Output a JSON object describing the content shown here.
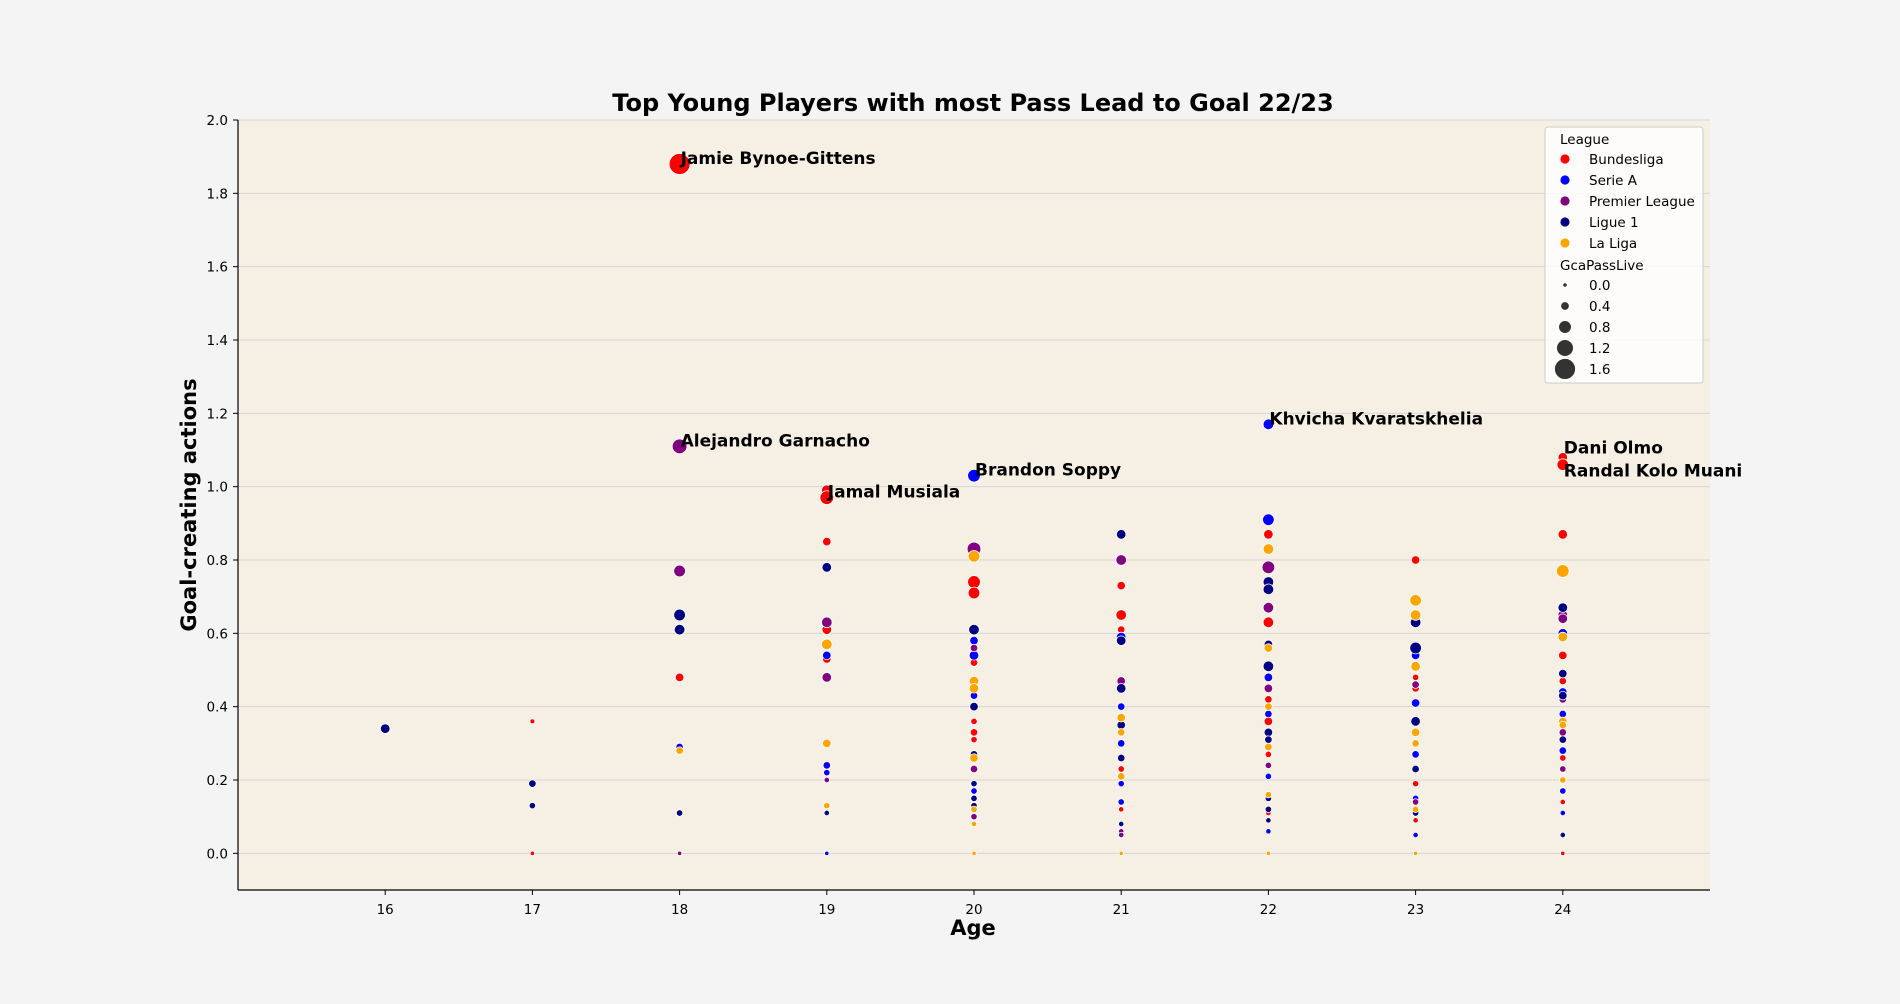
{
  "chart_data": {
    "type": "scatter",
    "title": "Top Young Players with most Pass Lead to Goal 22/23",
    "xlabel": "Age",
    "ylabel": "Goal-creating actions",
    "xlim": [
      15,
      25
    ],
    "ylim": [
      -0.1,
      2.0
    ],
    "xticks": [
      16,
      17,
      18,
      19,
      20,
      21,
      22,
      23,
      24
    ],
    "yticks": [
      "0.0",
      "0.2",
      "0.4",
      "0.6",
      "0.8",
      "1.0",
      "1.2",
      "1.4",
      "1.6",
      "1.8",
      "2.0"
    ],
    "ytick_values": [
      0,
      0.2,
      0.4,
      0.6,
      0.8,
      1.0,
      1.2,
      1.4,
      1.6,
      1.8,
      2.0
    ],
    "grid": "horizontal",
    "legend_position": "top-right",
    "legend": {
      "title": "League",
      "entries": [
        {
          "label": "Bundesliga",
          "color": "#ff0000"
        },
        {
          "label": "Serie A",
          "color": "#0000ff"
        },
        {
          "label": "Premier League",
          "color": "#800080"
        },
        {
          "label": "Ligue 1",
          "color": "#000080"
        },
        {
          "label": "La Liga",
          "color": "#ffa500"
        }
      ],
      "size_title": "GcaPassLive",
      "size_entries": [
        "0.0",
        "0.4",
        "0.8",
        "1.2",
        "1.6"
      ],
      "size_values": [
        0.0,
        0.4,
        0.8,
        1.2,
        1.6
      ]
    },
    "series": [
      {
        "name": "Bundesliga",
        "color": "#ff0000",
        "points": [
          [
            17,
            0.36,
            0.05
          ],
          [
            17,
            0.0,
            0.0
          ],
          [
            18,
            1.88,
            1.6
          ],
          [
            18,
            0.48,
            0.4
          ],
          [
            19,
            0.99,
            0.6
          ],
          [
            19,
            0.97,
            0.9
          ],
          [
            19,
            0.85,
            0.4
          ],
          [
            19,
            0.61,
            0.5
          ],
          [
            19,
            0.53,
            0.4
          ],
          [
            20,
            0.74,
            0.8
          ],
          [
            20,
            0.71,
            0.7
          ],
          [
            20,
            0.52,
            0.3
          ],
          [
            20,
            0.36,
            0.2
          ],
          [
            20,
            0.33,
            0.3
          ],
          [
            20,
            0.31,
            0.2
          ],
          [
            21,
            0.73,
            0.4
          ],
          [
            21,
            0.65,
            0.6
          ],
          [
            21,
            0.61,
            0.3
          ],
          [
            21,
            0.23,
            0.2
          ],
          [
            21,
            0.12,
            0.1
          ],
          [
            22,
            0.87,
            0.5
          ],
          [
            22,
            0.63,
            0.6
          ],
          [
            22,
            0.42,
            0.3
          ],
          [
            22,
            0.36,
            0.4
          ],
          [
            22,
            0.27,
            0.2
          ],
          [
            22,
            0.11,
            0.1
          ],
          [
            23,
            0.8,
            0.4
          ],
          [
            23,
            0.48,
            0.2
          ],
          [
            23,
            0.45,
            0.3
          ],
          [
            23,
            0.19,
            0.2
          ],
          [
            23,
            0.09,
            0.1
          ],
          [
            24,
            1.08,
            0.5
          ],
          [
            24,
            1.06,
            0.7
          ],
          [
            24,
            0.87,
            0.5
          ],
          [
            24,
            0.54,
            0.4
          ],
          [
            24,
            0.47,
            0.3
          ],
          [
            24,
            0.26,
            0.2
          ],
          [
            24,
            0.14,
            0.1
          ],
          [
            24,
            0.0,
            0.0
          ]
        ]
      },
      {
        "name": "Serie A",
        "color": "#0000ff",
        "points": [
          [
            18,
            0.29,
            0.3
          ],
          [
            19,
            0.54,
            0.4
          ],
          [
            19,
            0.24,
            0.3
          ],
          [
            19,
            0.22,
            0.2
          ],
          [
            19,
            0.0,
            0.0
          ],
          [
            20,
            1.03,
            0.8
          ],
          [
            20,
            0.58,
            0.4
          ],
          [
            20,
            0.54,
            0.5
          ],
          [
            20,
            0.43,
            0.3
          ],
          [
            20,
            0.17,
            0.2
          ],
          [
            21,
            0.59,
            0.5
          ],
          [
            21,
            0.4,
            0.3
          ],
          [
            21,
            0.3,
            0.3
          ],
          [
            21,
            0.19,
            0.2
          ],
          [
            21,
            0.14,
            0.2
          ],
          [
            22,
            1.17,
            0.6
          ],
          [
            22,
            0.91,
            0.7
          ],
          [
            22,
            0.48,
            0.4
          ],
          [
            22,
            0.38,
            0.3
          ],
          [
            22,
            0.21,
            0.2
          ],
          [
            22,
            0.06,
            0.1
          ],
          [
            23,
            0.54,
            0.4
          ],
          [
            23,
            0.41,
            0.4
          ],
          [
            23,
            0.27,
            0.3
          ],
          [
            23,
            0.15,
            0.2
          ],
          [
            23,
            0.05,
            0.1
          ],
          [
            24,
            0.6,
            0.5
          ],
          [
            24,
            0.44,
            0.4
          ],
          [
            24,
            0.38,
            0.3
          ],
          [
            24,
            0.28,
            0.3
          ],
          [
            24,
            0.2,
            0.2
          ],
          [
            24,
            0.17,
            0.2
          ],
          [
            24,
            0.11,
            0.1
          ]
        ]
      },
      {
        "name": "Premier League",
        "color": "#800080",
        "points": [
          [
            18,
            1.11,
            1.0
          ],
          [
            18,
            0.77,
            0.7
          ],
          [
            18,
            0.0,
            0.0
          ],
          [
            19,
            0.63,
            0.6
          ],
          [
            19,
            0.48,
            0.5
          ],
          [
            19,
            0.2,
            0.1
          ],
          [
            20,
            0.83,
            0.9
          ],
          [
            20,
            0.56,
            0.3
          ],
          [
            20,
            0.23,
            0.3
          ],
          [
            20,
            0.1,
            0.2
          ],
          [
            21,
            0.8,
            0.6
          ],
          [
            21,
            0.47,
            0.4
          ],
          [
            21,
            0.06,
            0.1
          ],
          [
            21,
            0.05,
            0.1
          ],
          [
            22,
            0.78,
            0.8
          ],
          [
            22,
            0.67,
            0.6
          ],
          [
            22,
            0.45,
            0.4
          ],
          [
            22,
            0.24,
            0.2
          ],
          [
            23,
            0.46,
            0.3
          ],
          [
            23,
            0.14,
            0.2
          ],
          [
            24,
            0.65,
            0.5
          ],
          [
            24,
            0.64,
            0.5
          ],
          [
            24,
            0.42,
            0.3
          ],
          [
            24,
            0.33,
            0.3
          ],
          [
            24,
            0.23,
            0.2
          ]
        ]
      },
      {
        "name": "Ligue 1",
        "color": "#000080",
        "points": [
          [
            16,
            0.34,
            0.5
          ],
          [
            17,
            0.19,
            0.3
          ],
          [
            17,
            0.13,
            0.2
          ],
          [
            18,
            0.65,
            0.7
          ],
          [
            18,
            0.61,
            0.6
          ],
          [
            18,
            0.11,
            0.2
          ],
          [
            19,
            0.78,
            0.5
          ],
          [
            19,
            0.11,
            0.1
          ],
          [
            20,
            0.61,
            0.6
          ],
          [
            20,
            0.4,
            0.4
          ],
          [
            20,
            0.27,
            0.3
          ],
          [
            20,
            0.19,
            0.2
          ],
          [
            20,
            0.15,
            0.2
          ],
          [
            20,
            0.13,
            0.2
          ],
          [
            21,
            0.87,
            0.5
          ],
          [
            21,
            0.58,
            0.5
          ],
          [
            21,
            0.45,
            0.5
          ],
          [
            21,
            0.35,
            0.4
          ],
          [
            21,
            0.26,
            0.3
          ],
          [
            21,
            0.08,
            0.1
          ],
          [
            22,
            0.74,
            0.6
          ],
          [
            22,
            0.72,
            0.6
          ],
          [
            22,
            0.57,
            0.4
          ],
          [
            22,
            0.51,
            0.6
          ],
          [
            22,
            0.33,
            0.4
          ],
          [
            22,
            0.31,
            0.3
          ],
          [
            22,
            0.15,
            0.2
          ],
          [
            22,
            0.12,
            0.2
          ],
          [
            22,
            0.09,
            0.1
          ],
          [
            23,
            0.63,
            0.6
          ],
          [
            23,
            0.56,
            0.7
          ],
          [
            23,
            0.36,
            0.5
          ],
          [
            23,
            0.23,
            0.3
          ],
          [
            23,
            0.11,
            0.2
          ],
          [
            24,
            0.67,
            0.5
          ],
          [
            24,
            0.49,
            0.4
          ],
          [
            24,
            0.43,
            0.4
          ],
          [
            24,
            0.31,
            0.3
          ],
          [
            24,
            0.05,
            0.1
          ]
        ]
      },
      {
        "name": "La Liga",
        "color": "#ffa500",
        "points": [
          [
            18,
            0.28,
            0.3
          ],
          [
            19,
            0.57,
            0.6
          ],
          [
            19,
            0.3,
            0.4
          ],
          [
            19,
            0.13,
            0.2
          ],
          [
            20,
            0.81,
            0.7
          ],
          [
            20,
            0.47,
            0.5
          ],
          [
            20,
            0.45,
            0.5
          ],
          [
            20,
            0.26,
            0.4
          ],
          [
            20,
            0.12,
            0.2
          ],
          [
            20,
            0.08,
            0.1
          ],
          [
            20,
            0.0,
            0.0
          ],
          [
            21,
            0.37,
            0.4
          ],
          [
            21,
            0.33,
            0.3
          ],
          [
            21,
            0.21,
            0.3
          ],
          [
            21,
            0.0,
            0.0
          ],
          [
            22,
            0.83,
            0.6
          ],
          [
            22,
            0.56,
            0.4
          ],
          [
            22,
            0.4,
            0.3
          ],
          [
            22,
            0.29,
            0.3
          ],
          [
            22,
            0.16,
            0.2
          ],
          [
            22,
            0.0,
            0.0
          ],
          [
            23,
            0.69,
            0.7
          ],
          [
            23,
            0.65,
            0.6
          ],
          [
            23,
            0.51,
            0.5
          ],
          [
            23,
            0.33,
            0.4
          ],
          [
            23,
            0.3,
            0.3
          ],
          [
            23,
            0.12,
            0.2
          ],
          [
            23,
            0.0,
            0.0
          ],
          [
            24,
            0.77,
            0.8
          ],
          [
            24,
            0.59,
            0.5
          ],
          [
            24,
            0.36,
            0.4
          ],
          [
            24,
            0.35,
            0.3
          ],
          [
            24,
            0.2,
            0.2
          ]
        ]
      }
    ],
    "annotations": [
      {
        "text": "Jamie Bynoe-Gittens",
        "x": 18,
        "y": 1.88
      },
      {
        "text": "Alejandro Garnacho",
        "x": 18,
        "y": 1.11
      },
      {
        "text": "Jamal Musiala",
        "x": 19,
        "y": 0.97
      },
      {
        "text": "Brandon Soppy",
        "x": 20,
        "y": 1.03
      },
      {
        "text": "Khvicha Kvaratskhelia",
        "x": 22,
        "y": 1.17
      },
      {
        "text": "Dani Olmo",
        "x": 24,
        "y": 1.08
      },
      {
        "text": "Randal Kolo Muani",
        "x": 24,
        "y": 1.06
      }
    ],
    "background": {
      "figure": "#f4f4f4",
      "axes": "#f6f0e4"
    }
  }
}
